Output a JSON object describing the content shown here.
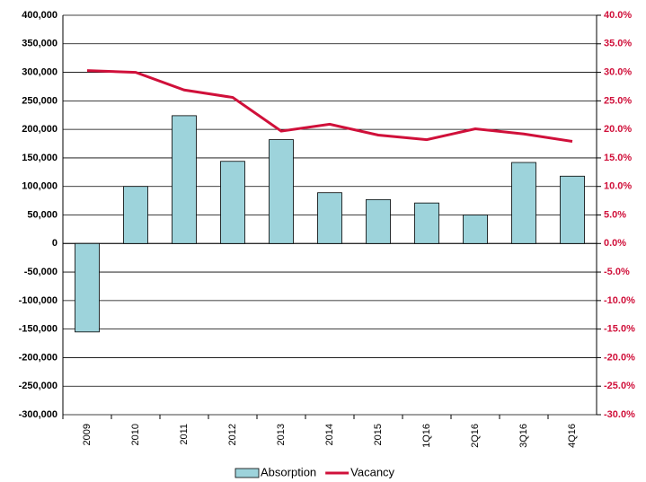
{
  "chart_data": {
    "type": "combo",
    "categories": [
      "2009",
      "2010",
      "2011",
      "2012",
      "2013",
      "2014",
      "2015",
      "1Q16",
      "2Q16",
      "3Q16",
      "4Q16"
    ],
    "series": [
      {
        "name": "Absorption",
        "type": "bar",
        "color": "#9dd3db",
        "values": [
          -155000,
          100000,
          224000,
          144000,
          182000,
          89000,
          77000,
          71000,
          50000,
          142000,
          118000
        ]
      },
      {
        "name": "Vacancy",
        "type": "line",
        "axis": "y2",
        "color": "#d0103a",
        "values": [
          30.3,
          30.0,
          26.9,
          25.6,
          19.7,
          20.9,
          19.0,
          18.2,
          20.1,
          19.2,
          17.9
        ]
      }
    ],
    "ylim": [
      -300000,
      400000
    ],
    "yticks": [
      {
        "value": -300000,
        "label": "-300,000"
      },
      {
        "value": -250000,
        "label": "-250,000"
      },
      {
        "value": -200000,
        "label": "-200,000"
      },
      {
        "value": -150000,
        "label": "-150,000"
      },
      {
        "value": -100000,
        "label": "-100,000"
      },
      {
        "value": -50000,
        "label": "-50,000"
      },
      0,
      {
        "value": 50000,
        "label": "50,000"
      },
      {
        "value": 100000,
        "label": "100,000"
      },
      {
        "value": 150000,
        "label": "150,000"
      },
      {
        "value": 200000,
        "label": "200,000"
      },
      {
        "value": 250000,
        "label": "250,000"
      },
      {
        "value": 300000,
        "label": "300,000"
      },
      {
        "value": 350000,
        "label": "350,000"
      },
      {
        "value": 400000,
        "label": "400,000"
      }
    ],
    "y2lim": [
      -30,
      40
    ],
    "y2ticks": [
      {
        "value": -30,
        "label": "-30.0%"
      },
      {
        "value": -25,
        "label": "-25.0%"
      },
      {
        "value": -20,
        "label": "-20.0%"
      },
      {
        "value": -15,
        "label": "-15.0%"
      },
      {
        "value": -10,
        "label": "-10.0%"
      },
      {
        "value": -5,
        "label": "-5.0%"
      },
      {
        "value": 0,
        "label": "0.0%"
      },
      {
        "value": 5,
        "label": "5.0%"
      },
      {
        "value": 10,
        "label": "10.0%"
      },
      {
        "value": 15,
        "label": "15.0%"
      },
      {
        "value": 20,
        "label": "20.0%"
      },
      {
        "value": 25,
        "label": "25.0%"
      },
      {
        "value": 30,
        "label": "30.0%"
      },
      {
        "value": 35,
        "label": "35.0%"
      },
      {
        "value": 40,
        "label": "40.0%"
      }
    ],
    "y2_color": "#d0103a",
    "grid": true,
    "legend": "bottom"
  }
}
